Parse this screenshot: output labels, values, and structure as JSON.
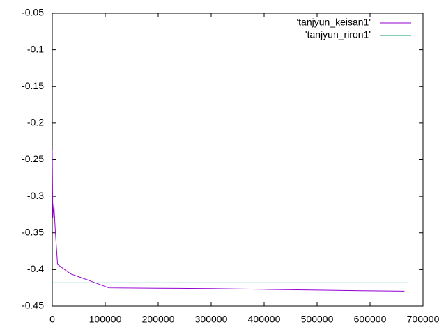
{
  "chart_data": {
    "type": "line",
    "series": [
      {
        "name": "'tanjyun_keisan1'",
        "color": "#9400d3",
        "x": [
          0,
          1000,
          3000,
          6000,
          10000,
          35000,
          70000,
          107000,
          200000,
          300000,
          400000,
          500000,
          600000,
          665000
        ],
        "values": [
          -0.237,
          -0.33,
          -0.31,
          -0.35,
          -0.393,
          -0.406,
          -0.415,
          -0.425,
          -0.4255,
          -0.426,
          -0.427,
          -0.428,
          -0.429,
          -0.4295
        ]
      },
      {
        "name": "'tanjyun_riron1'",
        "color": "#009e73",
        "x": [
          0,
          673000
        ],
        "values": [
          -0.418,
          -0.418
        ]
      }
    ],
    "xlim": [
      0,
      700000
    ],
    "xticks": [
      0,
      100000,
      200000,
      300000,
      400000,
      500000,
      600000,
      700000
    ],
    "ylim": [
      -0.45,
      -0.05
    ],
    "yticks": [
      -0.45,
      -0.4,
      -0.35,
      -0.3,
      -0.25,
      -0.2,
      -0.15,
      -0.1,
      -0.05
    ],
    "legend": "upper right"
  }
}
